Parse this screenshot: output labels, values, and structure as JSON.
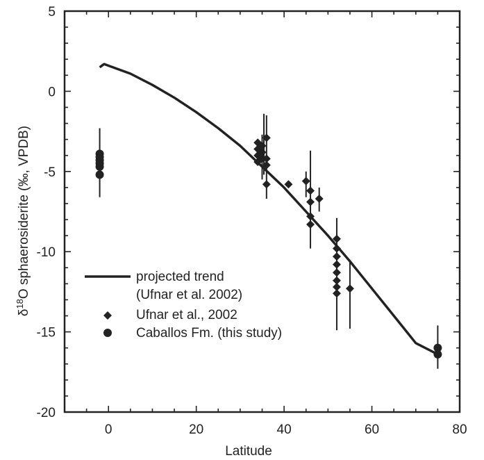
{
  "chart_data": {
    "type": "scatter",
    "xlabel": "Latitude",
    "ylabel_parts": {
      "delta": "δ",
      "sup": "18",
      "rest": "O sphaerosiderite (‰, VPDB)"
    },
    "xlim": [
      -10,
      80
    ],
    "ylim": [
      -20,
      5
    ],
    "xticks": [
      0,
      20,
      40,
      60,
      80
    ],
    "yticks": [
      5,
      0,
      -5,
      -10,
      -15,
      -20
    ],
    "xtick_labels": [
      "0",
      "20",
      "40",
      "60",
      "80"
    ],
    "ytick_labels": [
      "5",
      "0",
      "-5",
      "-10",
      "-15",
      "-20"
    ],
    "legend": {
      "placement": "lower-left",
      "entries": [
        {
          "label": "projected trend",
          "marker": "line"
        },
        {
          "label": "(Ufnar et al. 2002)",
          "marker": "none"
        },
        {
          "label": "Ufnar et al., 2002",
          "marker": "diamond"
        },
        {
          "label": "Caballos Fm. (this study)",
          "marker": "circle"
        }
      ]
    },
    "series": [
      {
        "name": "projected trend",
        "kind": "line",
        "x": [
          -2,
          -1,
          0,
          5,
          10,
          15,
          20,
          25,
          30,
          35,
          40,
          45,
          50,
          55,
          60,
          65,
          70,
          75
        ],
        "y": [
          1.5,
          1.7,
          1.6,
          1.1,
          0.4,
          -0.4,
          -1.3,
          -2.3,
          -3.4,
          -4.7,
          -6.0,
          -7.5,
          -9.0,
          -10.6,
          -12.3,
          -14.0,
          -15.7,
          -16.4
        ]
      },
      {
        "name": "Ufnar et al., 2002",
        "kind": "scatter",
        "marker": "diamond",
        "points": [
          {
            "x": 34,
            "y": -3.2
          },
          {
            "x": 34,
            "y": -3.6
          },
          {
            "x": 34,
            "y": -4.0
          },
          {
            "x": 34,
            "y": -4.4
          },
          {
            "x": 35,
            "y": -3.4
          },
          {
            "x": 35,
            "y": -3.8
          },
          {
            "x": 35,
            "y": -4.2
          },
          {
            "x": 36,
            "y": -2.9
          },
          {
            "x": 36,
            "y": -4.2
          },
          {
            "x": 36,
            "y": -4.6
          },
          {
            "x": 36,
            "y": -5.8
          },
          {
            "x": 41,
            "y": -5.8
          },
          {
            "x": 45,
            "y": -5.6
          },
          {
            "x": 46,
            "y": -6.2
          },
          {
            "x": 46,
            "y": -6.9
          },
          {
            "x": 46,
            "y": -7.8
          },
          {
            "x": 46,
            "y": -8.3
          },
          {
            "x": 48,
            "y": -6.7
          },
          {
            "x": 52,
            "y": -9.2
          },
          {
            "x": 52,
            "y": -9.8
          },
          {
            "x": 52,
            "y": -10.3
          },
          {
            "x": 52,
            "y": -10.8
          },
          {
            "x": 52,
            "y": -11.3
          },
          {
            "x": 52,
            "y": -11.8
          },
          {
            "x": 52,
            "y": -12.2
          },
          {
            "x": 52,
            "y": -12.6
          },
          {
            "x": 55,
            "y": -12.3
          }
        ],
        "error_bars": [
          {
            "x": 35,
            "ylow": -5.5,
            "yhigh": -2.7
          },
          {
            "x": 35.4,
            "ylow": -5.2,
            "yhigh": -1.4
          },
          {
            "x": 36,
            "ylow": -6.7,
            "yhigh": -1.5
          },
          {
            "x": 45,
            "ylow": -6.6,
            "yhigh": -5.0
          },
          {
            "x": 46,
            "ylow": -9.8,
            "yhigh": -3.7
          },
          {
            "x": 48,
            "ylow": -7.5,
            "yhigh": -6.0
          },
          {
            "x": 52,
            "ylow": -14.9,
            "yhigh": -7.9
          },
          {
            "x": 55,
            "ylow": -14.8,
            "yhigh": -10.6
          }
        ]
      },
      {
        "name": "Caballos Fm. (this study)",
        "kind": "scatter",
        "marker": "circle",
        "points": [
          {
            "x": -2,
            "y": -3.9
          },
          {
            "x": -2,
            "y": -4.1
          },
          {
            "x": -2,
            "y": -4.3
          },
          {
            "x": -2,
            "y": -4.5
          },
          {
            "x": -2,
            "y": -4.7
          },
          {
            "x": -2,
            "y": -5.2
          },
          {
            "x": 75,
            "y": -16.0
          },
          {
            "x": 75,
            "y": -16.4
          }
        ],
        "error_bars": [
          {
            "x": -2,
            "ylow": -6.6,
            "yhigh": -2.3
          },
          {
            "x": 75,
            "ylow": -17.3,
            "yhigh": -14.6
          }
        ]
      }
    ]
  }
}
